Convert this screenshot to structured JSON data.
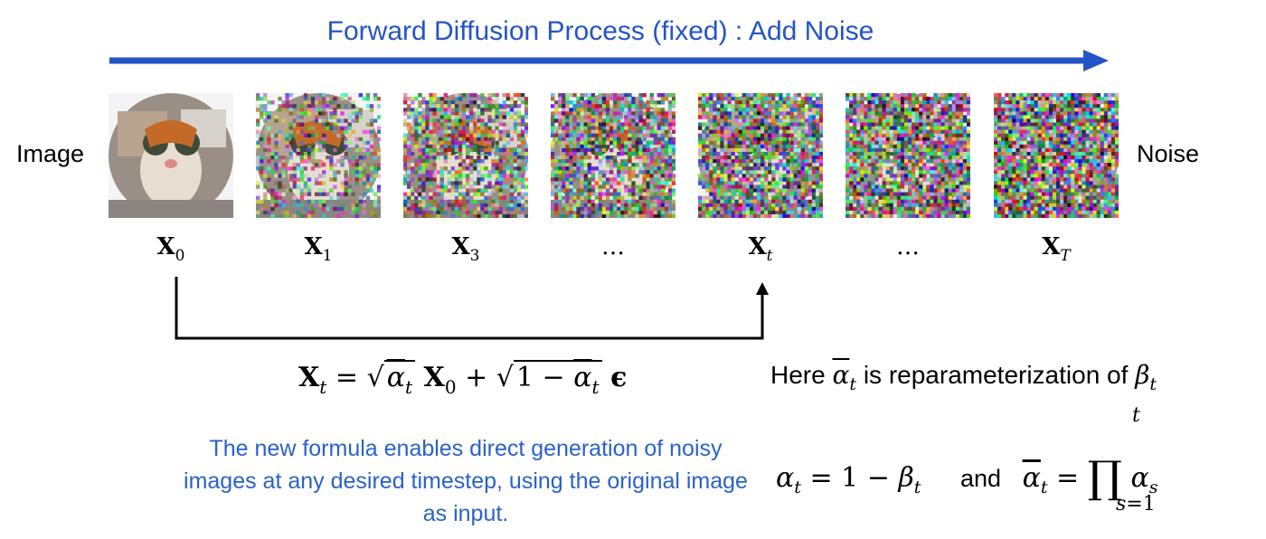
{
  "title": "Forward Diffusion Process (fixed) : Add Noise",
  "labels": {
    "left": "Image",
    "right": "Noise"
  },
  "frames": [
    {
      "base": "X",
      "sub": "0",
      "sub_italic": false,
      "noise_level": 0.0
    },
    {
      "base": "X",
      "sub": "1",
      "sub_italic": false,
      "noise_level": 0.45
    },
    {
      "base": "X",
      "sub": "3",
      "sub_italic": false,
      "noise_level": 0.65
    },
    {
      "base": "…",
      "sub": "",
      "sub_italic": false,
      "noise_level": 0.78
    },
    {
      "base": "X",
      "sub": "t",
      "sub_italic": true,
      "noise_level": 0.85
    },
    {
      "base": "…",
      "sub": "",
      "sub_italic": false,
      "noise_level": 0.9
    },
    {
      "base": "X",
      "sub": "T",
      "sub_italic": true,
      "noise_level": 0.95
    }
  ],
  "formula": {
    "lhs": "X",
    "lhs_sub": "t",
    "eq": "=",
    "root1_base": "α",
    "root1_sub": "t",
    "term1": "X",
    "term1_sub": "0",
    "plus": "+",
    "root2_one": "1 −",
    "root2_base": "α",
    "root2_sub": "t",
    "eps": "ϵ"
  },
  "caption": "The new formula enables direct generation of noisy images at any desired timestep, using the original image as input.",
  "reparam": {
    "prefix": "Here",
    "alpha": "α",
    "alpha_sub": "t",
    "middle": "is reparameterization of",
    "beta": "β",
    "beta_sub": "t"
  },
  "definitions": {
    "alpha": "α",
    "alpha_sub": "t",
    "eq1": "= 1 −",
    "beta": "β",
    "beta_sub": "t",
    "and": "and",
    "abar": "α",
    "abar_sub": "t",
    "eq2": "=",
    "prod": "∏",
    "prod_top": "t",
    "prod_bottom_var": "s",
    "prod_bottom_rest": "=1",
    "term": "α",
    "term_sub": "s"
  },
  "colors": {
    "arrow": "#2554c7",
    "title": "#2554c7",
    "caption": "#2a62c9"
  }
}
